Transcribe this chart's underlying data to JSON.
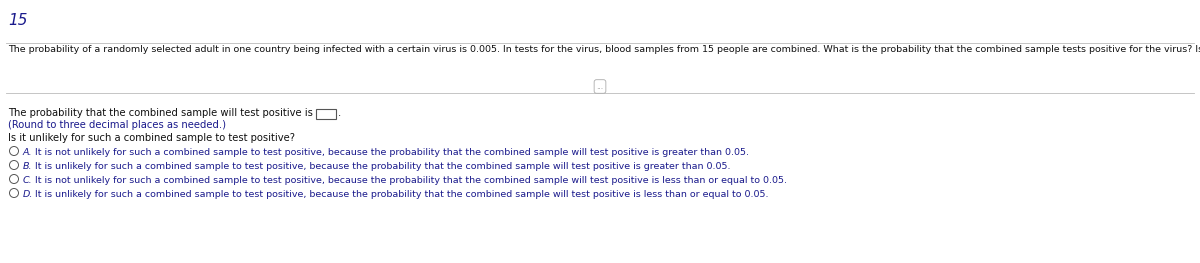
{
  "background_color": "#ffffff",
  "question_number": "15",
  "question_number_color": "#1a1a8c",
  "question_number_fontsize": 11,
  "paragraph_text": "The probability of a randomly selected adult in one country being infected with a certain virus is 0.005. In tests for the virus, blood samples from 15 people are combined. What is the probability that the combined sample tests positive for the virus? Is it unlikely for such a combined sample to test positive? Note that the combined sample tests positive if at least one person has the virus.",
  "paragraph_color": "#111111",
  "paragraph_fontsize": 6.8,
  "separator_color": "#bbbbbb",
  "ellipsis_text": "...",
  "line1_text": "The probability that the combined sample will test positive is",
  "line1_color": "#111111",
  "line1_fontsize": 7.2,
  "line2_text": "(Round to three decimal places as needed.)",
  "line2_color": "#1a1a8c",
  "line2_fontsize": 7.2,
  "question2_text": "Is it unlikely for such a combined sample to test positive?",
  "question2_color": "#111111",
  "question2_fontsize": 7.2,
  "options": [
    {
      "label": "A.",
      "text": "It is not unlikely for such a combined sample to test positive, because the probability that the combined sample will test positive is greater than 0.05.",
      "color": "#1a1a8c"
    },
    {
      "label": "B.",
      "text": "It is unlikely for such a combined sample to test positive, because the probability that the combined sample will test positive is greater than 0.05.",
      "color": "#1a1a8c"
    },
    {
      "label": "C.",
      "text": "It is not unlikely for such a combined sample to test positive, because the probability that the combined sample will test positive is less than or equal to 0.05.",
      "color": "#1a1a8c"
    },
    {
      "label": "D.",
      "text": "It is unlikely for such a combined sample to test positive, because the probability that the combined sample will test positive is less than or equal to 0.05.",
      "color": "#1a1a8c"
    }
  ],
  "option_fontsize": 6.8,
  "circle_color": "#555555"
}
